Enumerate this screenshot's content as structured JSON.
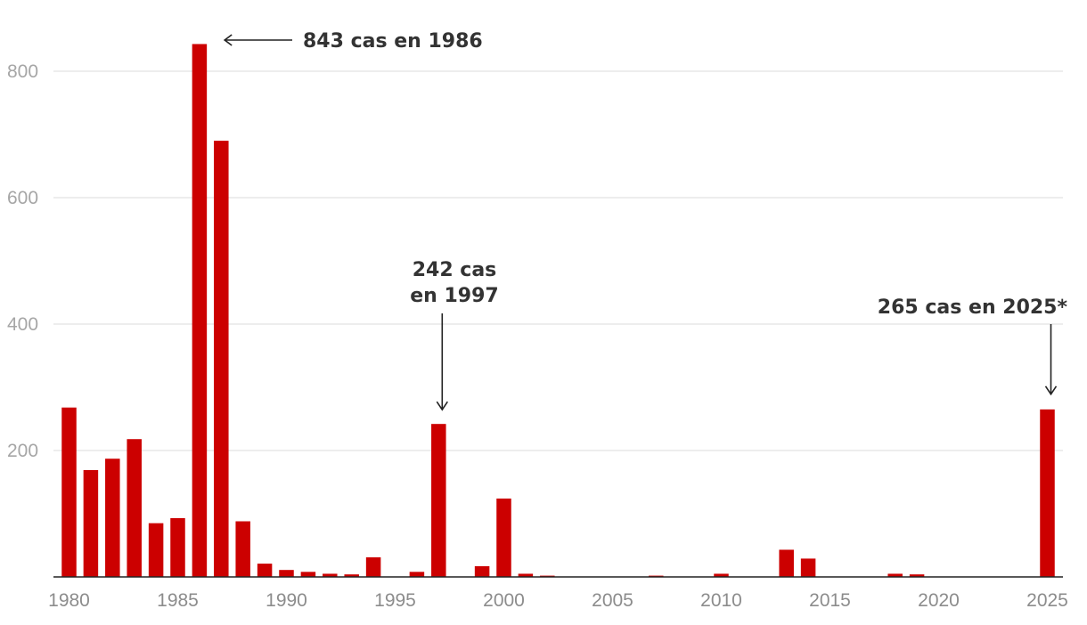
{
  "chart_data": {
    "type": "bar",
    "title": "",
    "xlabel": "",
    "ylabel": "",
    "color": "#cc0000",
    "ylim": [
      0,
      850
    ],
    "yticks": [
      200,
      400,
      600,
      800
    ],
    "xticks": [
      1980,
      1985,
      1990,
      1995,
      2000,
      2005,
      2010,
      2015,
      2020,
      2025
    ],
    "grid": true,
    "categories": [
      1980,
      1981,
      1982,
      1983,
      1984,
      1985,
      1986,
      1987,
      1988,
      1989,
      1990,
      1991,
      1992,
      1993,
      1994,
      1995,
      1996,
      1997,
      1998,
      1999,
      2000,
      2001,
      2002,
      2003,
      2004,
      2005,
      2006,
      2007,
      2008,
      2009,
      2010,
      2011,
      2012,
      2013,
      2014,
      2015,
      2016,
      2017,
      2018,
      2019,
      2020,
      2021,
      2022,
      2023,
      2024,
      2025
    ],
    "values": [
      268,
      169,
      187,
      218,
      85,
      93,
      843,
      690,
      88,
      21,
      11,
      8,
      5,
      4,
      31,
      0,
      8,
      242,
      0,
      17,
      124,
      5,
      2,
      0,
      0,
      0,
      0,
      2,
      0,
      0,
      5,
      0,
      0,
      43,
      29,
      0,
      0,
      0,
      5,
      4,
      0,
      0,
      0,
      0,
      0,
      265
    ],
    "annotations": [
      {
        "id": "a1986",
        "year": 1986,
        "value": 843,
        "lines": [
          "843 cas en 1986"
        ]
      },
      {
        "id": "a1997",
        "year": 1997,
        "value": 242,
        "lines": [
          "242 cas",
          "en 1997"
        ]
      },
      {
        "id": "a2025",
        "year": 2025,
        "value": 265,
        "lines": [
          "265 cas en 2025*"
        ]
      }
    ]
  }
}
